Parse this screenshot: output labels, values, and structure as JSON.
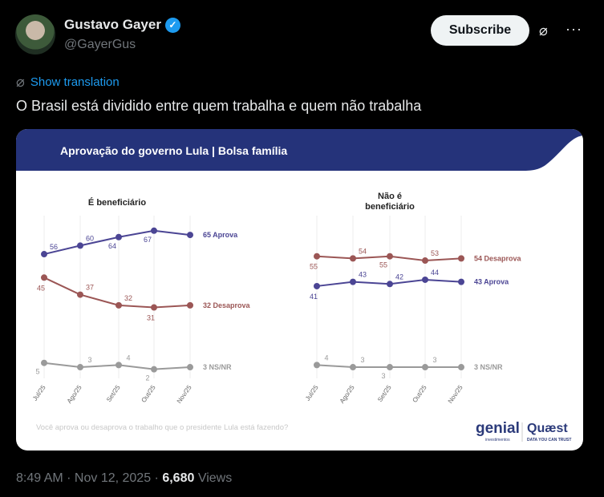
{
  "author": {
    "name": "Gustavo Gayer",
    "handle": "@GayerGus",
    "verified": true
  },
  "subscribe_label": "Subscribe",
  "show_translation": "Show translation",
  "tweet_text": "O Brasil está dividido entre quem trabalha e quem não trabalha",
  "footer": {
    "time": "8:49 AM · Nov 12, 2025 · ",
    "views_count": "6,680",
    "views_label": " Views"
  },
  "chart_header": "Aprovação do governo Lula | Bolsa família",
  "chart_question": "Você aprova ou desaprova o trabalho que o presidente Lula está fazendo?",
  "logos": {
    "genial": "genial investimentos",
    "quaest": "Quaest",
    "quaest_tagline": "DATA YOU CAN TRUST"
  },
  "colors": {
    "aprova": "#4b4594",
    "desaprova": "#9b5655",
    "nsnr": "#9a9a9a",
    "header": "#25337a"
  },
  "chart_data": [
    {
      "type": "line",
      "title": "É beneficiário",
      "categories": [
        "Jul/25",
        "Ago/25",
        "Set/25",
        "Out/25",
        "Nov/25"
      ],
      "series": [
        {
          "name": "Aprova",
          "values": [
            56,
            60,
            64,
            67,
            65
          ],
          "end_label": "65 Aprova"
        },
        {
          "name": "Desaprova",
          "values": [
            45,
            37,
            32,
            31,
            32
          ],
          "end_label": "32 Desaprova"
        },
        {
          "name": "NS/NR",
          "values": [
            5,
            3,
            4,
            2,
            3
          ],
          "end_label": "3 NS/NR"
        }
      ]
    },
    {
      "type": "line",
      "title": "Não é beneficiário",
      "categories": [
        "Jul/25",
        "Ago/25",
        "Set/25",
        "Out/25",
        "Nov/25"
      ],
      "series": [
        {
          "name": "Desaprova",
          "values": [
            55,
            54,
            55,
            53,
            54
          ],
          "end_label": "54 Desaprova"
        },
        {
          "name": "Aprova",
          "values": [
            41,
            43,
            42,
            44,
            43
          ],
          "end_label": "43 Aprova"
        },
        {
          "name": "NS/NR",
          "values": [
            4,
            3,
            3,
            3,
            3
          ],
          "end_label": "3 NS/NR"
        }
      ]
    }
  ]
}
